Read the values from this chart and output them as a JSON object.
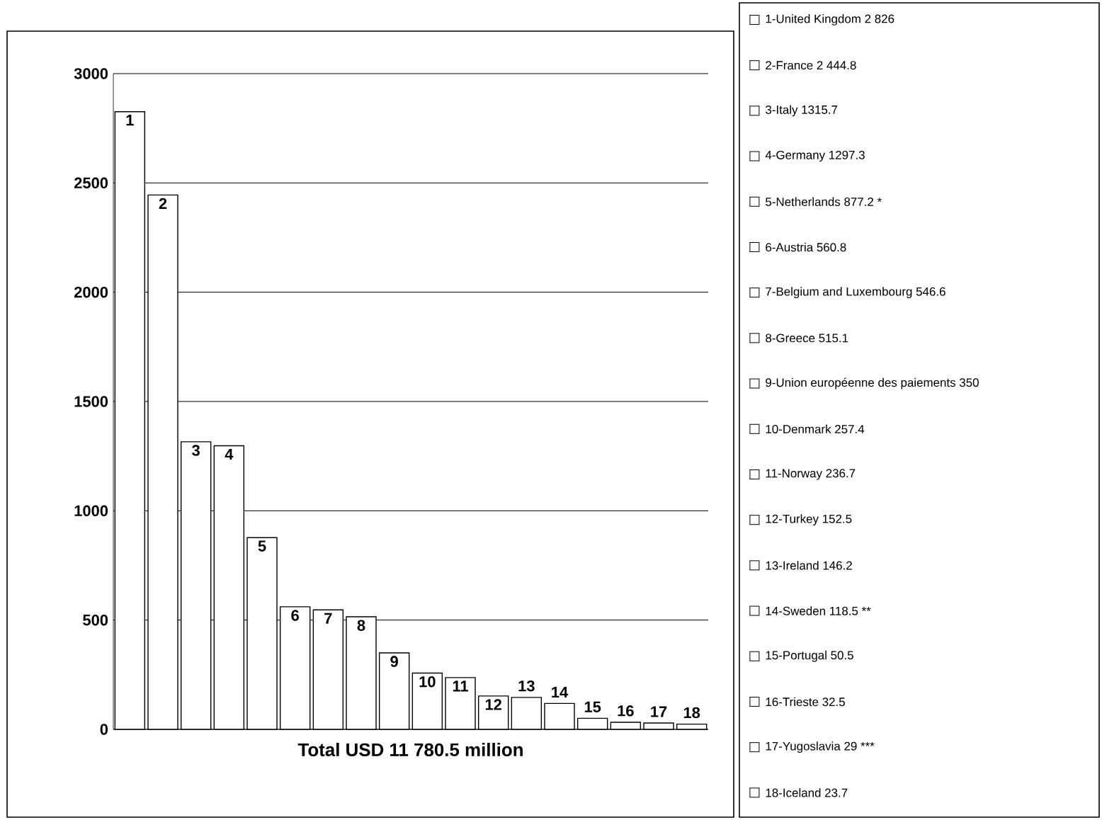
{
  "chart_data": {
    "type": "bar",
    "xlabel": "Total USD 11 780.5 million",
    "categories": [
      "1",
      "2",
      "3",
      "4",
      "5",
      "6",
      "7",
      "8",
      "9",
      "10",
      "11",
      "12",
      "13",
      "14",
      "15",
      "16",
      "17",
      "18"
    ],
    "values": [
      2826,
      2444.8,
      1315.7,
      1297.3,
      877.2,
      560.8,
      546.6,
      515.1,
      350,
      257.4,
      236.7,
      152.5,
      146.2,
      118.5,
      50.5,
      32.5,
      29,
      23.7
    ],
    "color": "#ffffff",
    "ylim": [
      0,
      3000
    ],
    "yticks": [
      0,
      500,
      1000,
      1500,
      2000,
      2500,
      3000
    ],
    "grid": "y",
    "annotations": [
      "1-United Kingdom 2 826",
      "2-France 2 444.8",
      "3-Italy 1315.7",
      "4-Germany 1297.3",
      "5-Netherlands 877.2 *",
      "6-Austria 560.8",
      "7-Belgium and Luxembourg 546.6",
      "8-Greece 515.1",
      "9-Union européenne des paiements 350",
      "10-Denmark 257.4",
      "11-Norway 236.7",
      "12-Turkey 152.5",
      "13-Ireland 146.2",
      "14-Sweden 118.5 **",
      "15-Portugal 50.5",
      "16-Trieste 32.5",
      "17-Yugoslavia 29 ***",
      "18-Iceland 23.7"
    ]
  }
}
